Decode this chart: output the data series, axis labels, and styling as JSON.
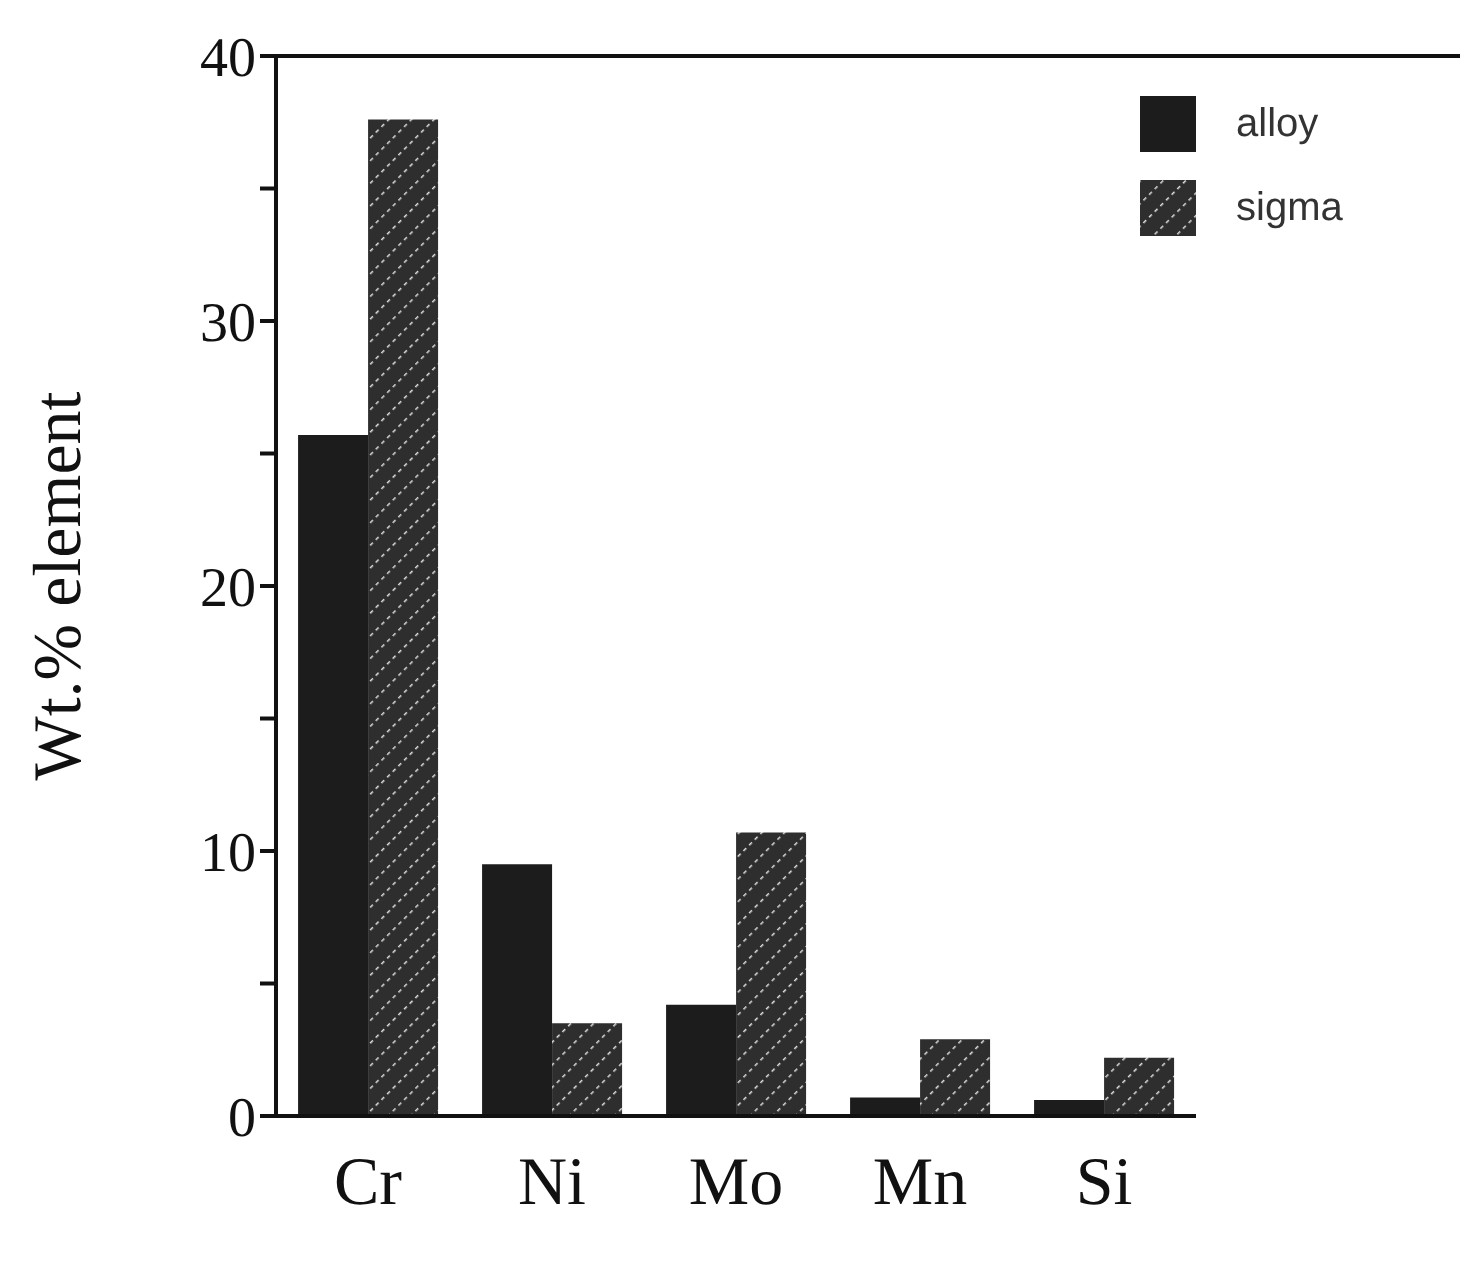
{
  "chart_data": {
    "type": "bar",
    "ylabel": "Wt.% element",
    "categories": [
      "Cr",
      "Ni",
      "Mo",
      "Mn",
      "Si"
    ],
    "series": [
      {
        "name": "alloy",
        "color": "#1c1c1c",
        "values": [
          25.7,
          9.5,
          4.2,
          0.7,
          0.6
        ]
      },
      {
        "name": "sigma",
        "color": "#2e2e2e",
        "values": [
          37.6,
          3.5,
          10.7,
          2.9,
          2.2
        ]
      }
    ],
    "ylim": [
      0,
      40
    ],
    "yticks": [
      0,
      {
        "value": 5,
        "label": null
      },
      10,
      {
        "value": 15,
        "label": null
      },
      20,
      {
        "value": 25,
        "label": null
      },
      30,
      {
        "value": 35,
        "label": null
      },
      40
    ],
    "grid": false,
    "legend": "top right"
  }
}
